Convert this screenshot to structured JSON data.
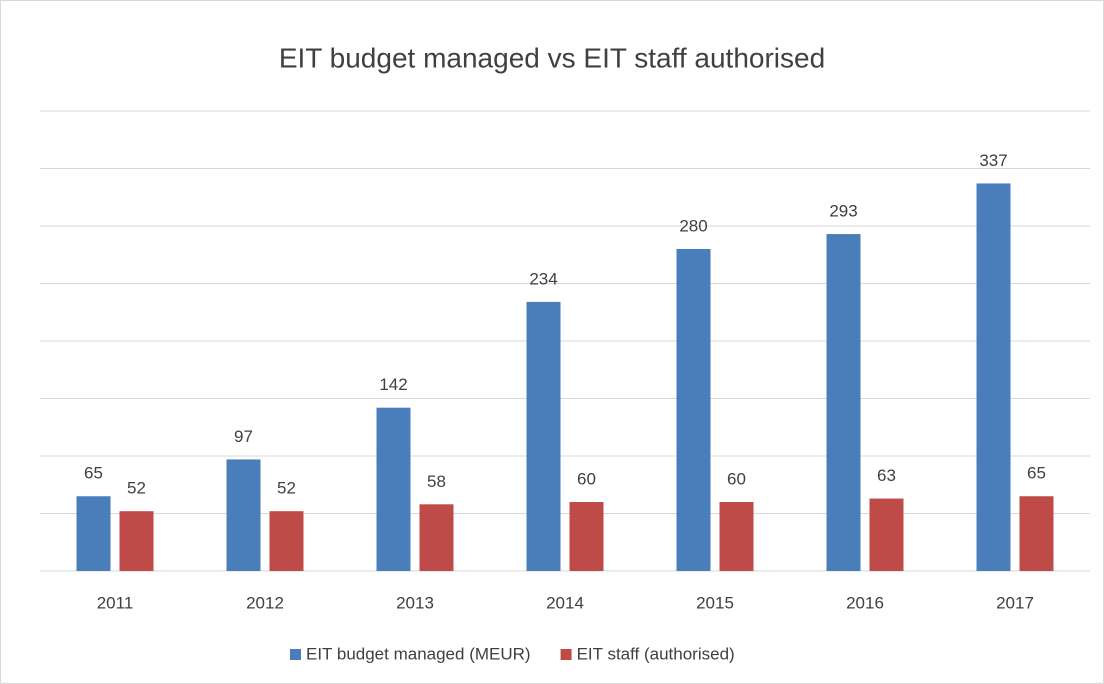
{
  "chart_data": {
    "type": "bar",
    "title": "EIT budget managed vs EIT staff authorised",
    "categories": [
      "2011",
      "2012",
      "2013",
      "2014",
      "2015",
      "2016",
      "2017"
    ],
    "series": [
      {
        "name": "EIT budget managed (MEUR)",
        "color": "#4a7ebb",
        "values": [
          65,
          97,
          142,
          234,
          280,
          293,
          337
        ]
      },
      {
        "name": "EIT staff (authorised)",
        "color": "#be4b48",
        "values": [
          52,
          52,
          58,
          60,
          60,
          63,
          65
        ]
      }
    ],
    "ylim": [
      0,
      400
    ],
    "yticks": [
      0,
      50,
      100,
      150,
      200,
      250,
      300,
      350,
      400
    ],
    "grid": true,
    "legend": "bottom"
  }
}
